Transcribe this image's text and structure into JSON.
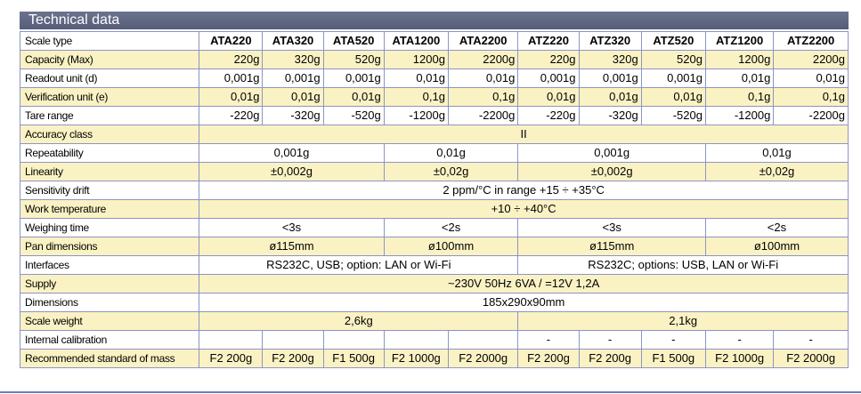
{
  "title": "Technical data",
  "models": [
    "ATA220",
    "ATA320",
    "ATA520",
    "ATA1200",
    "ATA2200",
    "ATZ220",
    "ATZ320",
    "ATZ520",
    "ATZ1200",
    "ATZ2200"
  ],
  "labels": {
    "scale_type": "Scale type",
    "capacity": "Capacity (Max)",
    "readout": "Readout unit (d)",
    "verification": "Verification unit (e)",
    "tare": "Tare range",
    "accuracy": "Accuracy class",
    "repeatability": "Repeatability",
    "linearity": "Linearity",
    "drift": "Sensitivity drift",
    "work_temp": "Work temperature",
    "weighing_time": "Weighing time",
    "pan": "Pan dimensions",
    "interfaces": "Interfaces",
    "supply": "Supply",
    "dimensions": "Dimensions",
    "scale_weight": "Scale weight",
    "internal_cal": "Internal calibration",
    "rec_mass": "Recommended standard of mass"
  },
  "capacity": [
    "220g",
    "320g",
    "520g",
    "1200g",
    "2200g",
    "220g",
    "320g",
    "520g",
    "1200g",
    "2200g"
  ],
  "readout": [
    "0,001g",
    "0,001g",
    "0,001g",
    "0,01g",
    "0,01g",
    "0,001g",
    "0,001g",
    "0,001g",
    "0,01g",
    "0,01g"
  ],
  "verification": [
    "0,01g",
    "0,01g",
    "0,01g",
    "0,1g",
    "0,1g",
    "0,01g",
    "0,01g",
    "0,01g",
    "0,1g",
    "0,1g"
  ],
  "tare": [
    "-220g",
    "-320g",
    "-520g",
    "-1200g",
    "-2200g",
    "-220g",
    "-320g",
    "-520g",
    "-1200g",
    "-2200g"
  ],
  "accuracy": "II",
  "repeatability": [
    "0,001g",
    "0,01g",
    "0,001g",
    "0,01g"
  ],
  "linearity": [
    "±0,002g",
    "±0,02g",
    "±0,002g",
    "±0,02g"
  ],
  "drift": "2 ppm/°C in range +15 ÷ +35°C",
  "work_temp": "+10 ÷ +40°C",
  "weighing_time": [
    "<3s",
    "<2s",
    "<3s",
    "<2s"
  ],
  "pan": [
    "ø115mm",
    "ø100mm",
    "ø115mm",
    "ø100mm"
  ],
  "interfaces": [
    "RS232C, USB; option: LAN or Wi-Fi",
    "RS232C; options: USB, LAN or Wi-Fi"
  ],
  "supply": "~230V  50Hz  6VA /  =12V 1,2A",
  "dimensions": "185x290x90mm",
  "scale_weight": [
    "2,6kg",
    "2,1kg"
  ],
  "internal_cal": [
    "",
    "",
    "",
    "",
    "",
    "-",
    "-",
    "-",
    "-",
    "-"
  ],
  "rec_mass": [
    "F2  200g",
    "F2  200g",
    "F1  500g",
    "F2  1000g",
    "F2  2000g",
    "F2  200g",
    "F2  200g",
    "F1  500g",
    "F2  1000g",
    "F2  2000g"
  ]
}
